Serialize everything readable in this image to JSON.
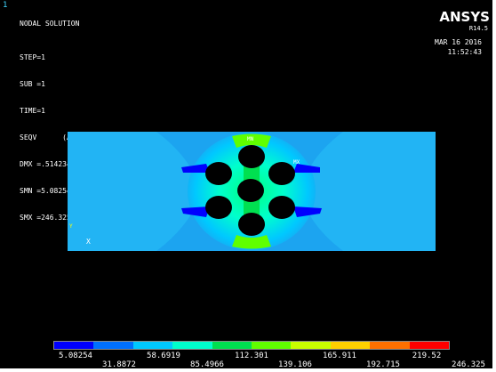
{
  "window_number": "1",
  "title": "NODAL SOLUTION",
  "stats": [
    "STEP=1",
    "SUB =1",
    "TIME=1",
    "SEQV      (AVG)",
    "DMX =.514234",
    "SMN =5.08254",
    "SMX =246.325"
  ],
  "brand": {
    "logo": "ANSYS",
    "release": "R14.5"
  },
  "date": "MAR 16 2016",
  "time": "11:52:43",
  "model_labels": {
    "mx": "MX",
    "mn": "MN",
    "axis_x": "X",
    "axis_y": "Y"
  },
  "legend": {
    "colors": [
      "#0000ff",
      "#0070ff",
      "#00c8ff",
      "#00ffcc",
      "#00e050",
      "#60ff00",
      "#c8ff00",
      "#ffd000",
      "#ff7000",
      "#ff0000"
    ],
    "upper_ticks": [
      "5.08254",
      "58.6919",
      "112.301",
      "165.911",
      "219.52"
    ],
    "lower_ticks": [
      "31.8872",
      "85.4966",
      "139.106",
      "192.715",
      "246.325"
    ]
  }
}
